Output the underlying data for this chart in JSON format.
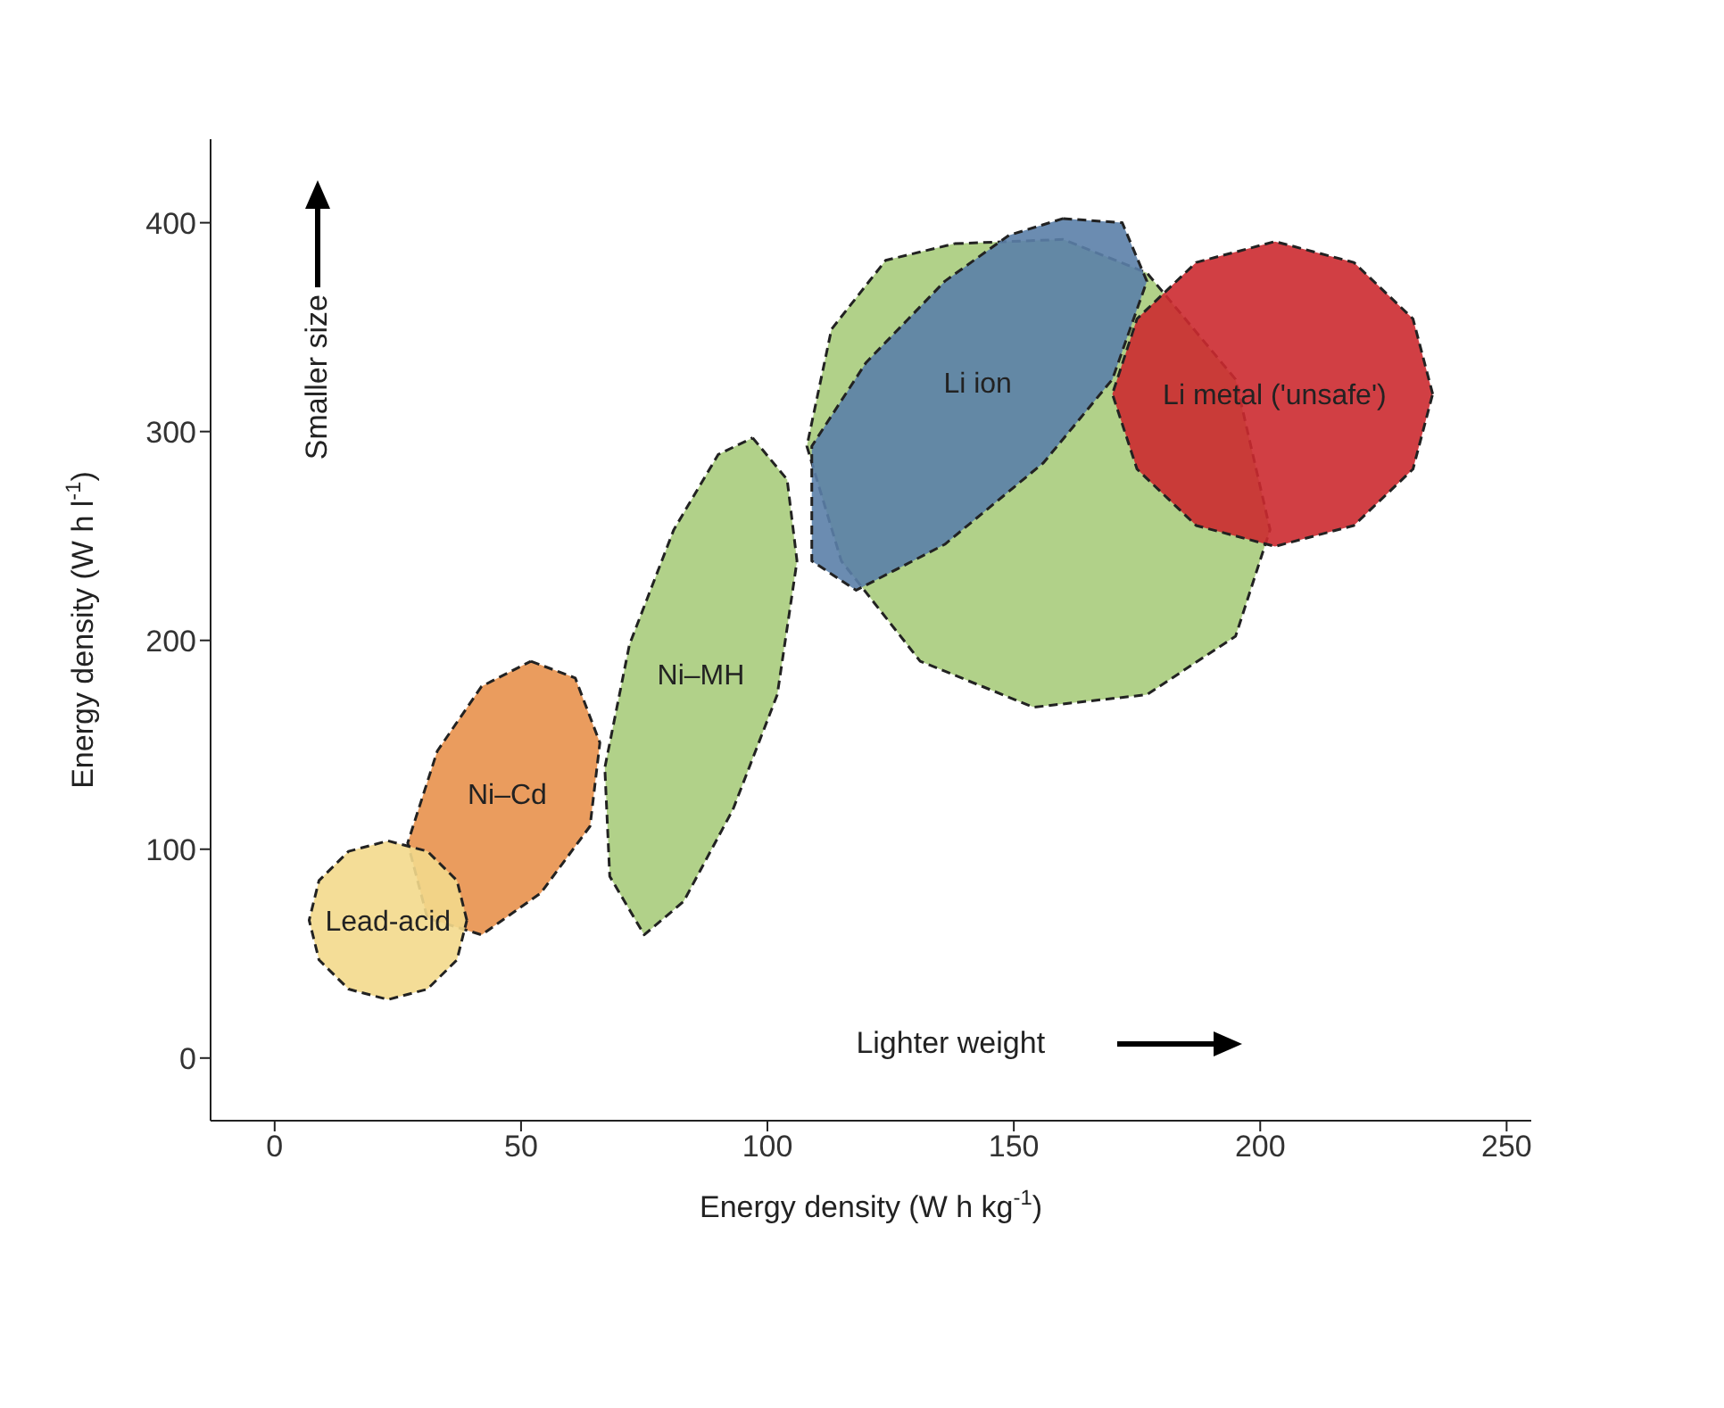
{
  "chart_data": {
    "type": "area",
    "xlabel": "Energy density (W h kg$^{-1}$)",
    "ylabel": "Energy density (W h l$^{-1}$)",
    "xlim": [
      -13,
      255
    ],
    "ylim": [
      -30,
      440
    ],
    "xticks": [
      0,
      50,
      100,
      150,
      200,
      250
    ],
    "yticks": [
      0,
      100,
      200,
      300,
      400
    ],
    "marker": "none",
    "line_style": "dashed",
    "annotations": [
      "Smaller size",
      "Lighter weight"
    ],
    "series": [
      {
        "name": "Ni–Cd",
        "color": "#e8914c",
        "x": [
          52,
          61,
          66,
          64,
          54,
          42,
          31,
          27,
          33,
          42
        ],
        "values": [
          190,
          182,
          151,
          111,
          79,
          59,
          67,
          103,
          147,
          178
        ]
      },
      {
        "name": "Lead-acid",
        "color": "#f3d98c",
        "x": [
          39,
          37,
          31,
          23,
          15,
          9,
          7,
          9,
          15,
          23,
          31,
          37
        ],
        "values": [
          66,
          85,
          99,
          104,
          99,
          85,
          66,
          47,
          33,
          28,
          33,
          47
        ]
      },
      {
        "name": "Ni–MH",
        "color": "#a9cc7c",
        "x": [
          97,
          104,
          106,
          102,
          93,
          83,
          75,
          68,
          67,
          72,
          81,
          90
        ],
        "values": [
          297,
          277,
          238,
          174,
          119,
          75,
          59,
          87,
          139,
          198,
          253,
          289
        ]
      },
      {
        "color": "#a9cc7c",
        "x": [
          138,
          160,
          177,
          195,
          202,
          195,
          177,
          154,
          131,
          115,
          108,
          113,
          124
        ],
        "values": [
          390,
          392,
          376,
          325,
          253,
          202,
          174,
          168,
          190,
          238,
          293,
          349,
          382
        ]
      },
      {
        "name": "Li ion",
        "color": "#5b80a9",
        "x": [
          160,
          172,
          177,
          170,
          156,
          136,
          118,
          109,
          109,
          120,
          136,
          149
        ],
        "values": [
          402,
          400,
          372,
          325,
          285,
          246,
          224,
          238,
          293,
          333,
          372,
          394
        ]
      },
      {
        "name": "Li metal ('unsafe')",
        "color": "#cc2a30",
        "x": [
          235,
          231,
          219,
          203,
          187,
          175,
          170,
          175,
          187,
          203,
          219,
          231
        ],
        "values": [
          318,
          354,
          381,
          391,
          381,
          354,
          318,
          282,
          255,
          245,
          255,
          282
        ]
      }
    ]
  }
}
